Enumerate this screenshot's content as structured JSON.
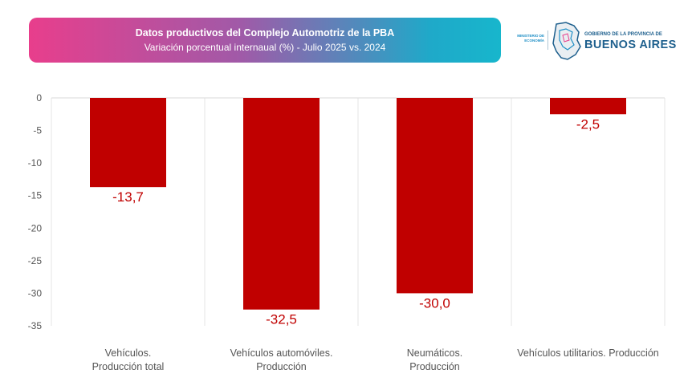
{
  "header": {
    "title": "Datos productivos del Complejo Automotriz de la PBA",
    "subtitle": "Variación porcentual internaual (%) - Julio 2025 vs. 2024"
  },
  "logo": {
    "ministry": "MINISTERIO DE ECONOMÍA",
    "government": "GOBIERNO DE LA PROVINCIA DE",
    "province": "BUENOS AIRES"
  },
  "colors": {
    "bar": "#c00000",
    "banner_start": "#e83e8c",
    "banner_end": "#17b6cc",
    "brand": "#1d5f8d"
  },
  "chart_data": {
    "type": "bar",
    "title": "Datos productivos del Complejo Automotriz de la PBA",
    "subtitle": "Variación porcentual internaual (%) - Julio 2025 vs. 2024",
    "categories": [
      [
        "Vehículos.",
        "Producción total"
      ],
      [
        "Vehículos automóviles.",
        "Producción"
      ],
      [
        "Neumáticos.",
        "Producción"
      ],
      [
        "Vehículos utilitarios. Producción"
      ]
    ],
    "values": [
      -13.7,
      -32.5,
      -30.0,
      -2.5
    ],
    "value_labels": [
      "-13,7",
      "-32,5",
      "-30,0",
      "-2,5"
    ],
    "ylim": [
      -35,
      0
    ],
    "yticks": [
      0,
      -5,
      -10,
      -15,
      -20,
      -25,
      -30,
      -35
    ],
    "grid": "vertical separators",
    "legend": "none"
  }
}
